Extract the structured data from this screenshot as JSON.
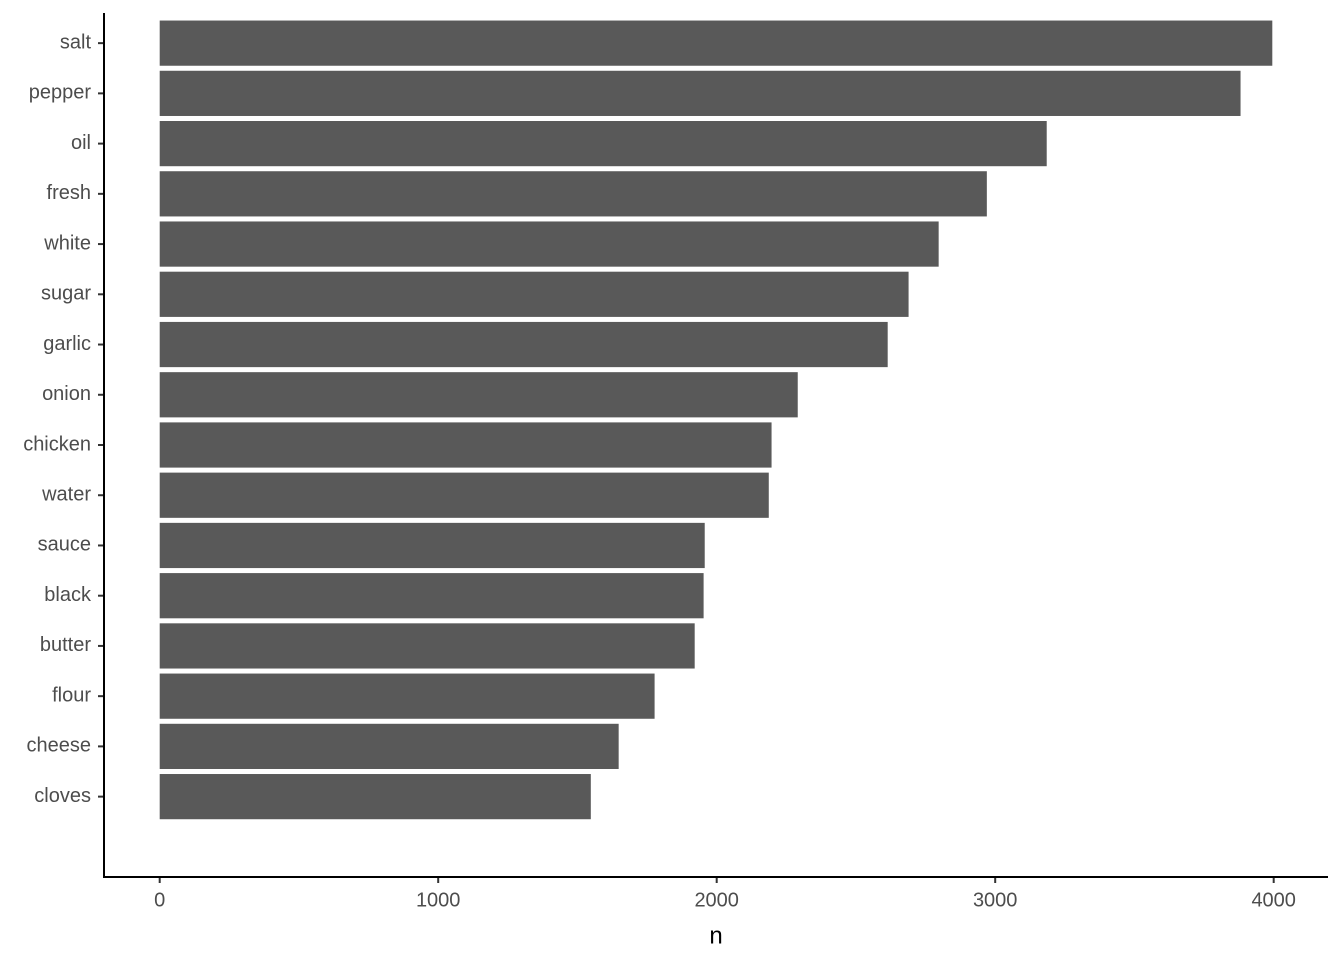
{
  "chart_data": {
    "type": "bar",
    "orientation": "horizontal",
    "categories": [
      "salt",
      "pepper",
      "oil",
      "fresh",
      "white",
      "sugar",
      "garlic",
      "onion",
      "chicken",
      "water",
      "sauce",
      "black",
      "butter",
      "flour",
      "cheese",
      "cloves"
    ],
    "values": [
      3995,
      3881,
      3185,
      2970,
      2797,
      2689,
      2614,
      2291,
      2197,
      2187,
      1957,
      1953,
      1921,
      1777,
      1648,
      1548
    ],
    "color": "#595959",
    "x_label": "n",
    "xlim": [
      -200,
      4195
    ],
    "xticks": [
      0,
      1000,
      2000,
      3000,
      4000
    ],
    "grid": false
  }
}
